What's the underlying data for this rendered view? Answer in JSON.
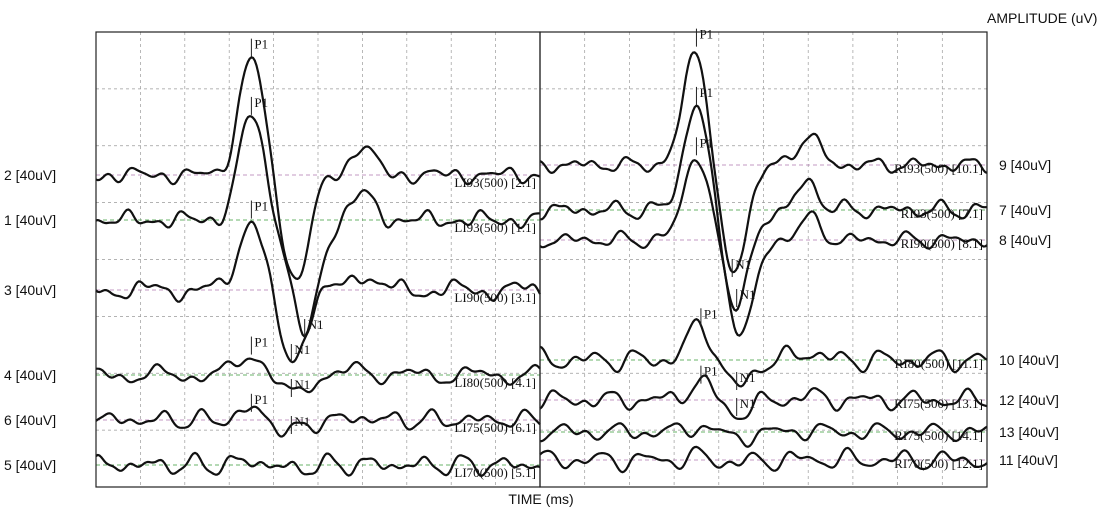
{
  "chart_data": {
    "type": "line",
    "title": "",
    "xlabel": "TIME (ms)",
    "ylabel": "AMPLITUDE (uV)",
    "grid": true,
    "panels": [
      {
        "side": "left",
        "traces": [
          {
            "channel": "2 [40uV]",
            "name": "LI93(500) [2.1]",
            "baseline": 175,
            "p1": {
              "t": 0.35,
              "a": 118,
              "label": "P1"
            },
            "n1": {
              "t": 0.45,
              "a": -105,
              "label": ""
            },
            "seed": 2
          },
          {
            "channel": "1 [40uV]",
            "name": "LI93(500) [1.1]",
            "baseline": 220,
            "p1": {
              "t": 0.35,
              "a": 105,
              "label": "P1"
            },
            "n1": {
              "t": 0.47,
              "a": -115,
              "label": "N1"
            },
            "seed": 1
          },
          {
            "channel": "3 [40uV]",
            "name": "LI90(500) [3.1]",
            "baseline": 290,
            "p1": {
              "t": 0.35,
              "a": 72,
              "label": "P1"
            },
            "n1": {
              "t": 0.44,
              "a": -70,
              "label": "N1"
            },
            "seed": 3
          },
          {
            "channel": "4 [40uV]",
            "name": "LI80(500) [4.1]",
            "baseline": 375,
            "p1": {
              "t": 0.35,
              "a": 22,
              "label": "P1"
            },
            "n1": {
              "t": 0.44,
              "a": -20,
              "label": "N1"
            },
            "seed": 4
          },
          {
            "channel": "6 [40uV]",
            "name": "LI75(500) [6.1]",
            "baseline": 420,
            "p1": {
              "t": 0.35,
              "a": 10,
              "label": "P1"
            },
            "n1": {
              "t": 0.44,
              "a": -12,
              "label": "N1"
            },
            "seed": 6
          },
          {
            "channel": "5 [40uV]",
            "name": "LI70(500) [5.1]",
            "baseline": 465,
            "p1": {
              "t": 0.35,
              "a": 4,
              "label": ""
            },
            "n1": {
              "t": 0.44,
              "a": -4,
              "label": ""
            },
            "seed": 5
          }
        ]
      },
      {
        "side": "right",
        "traces": [
          {
            "channel": "9 [40uV]",
            "name": "RI93(500) [10.1]",
            "baseline": 165,
            "p1": {
              "t": 0.35,
              "a": 118,
              "label": "P1"
            },
            "n1": {
              "t": 0.43,
              "a": -110,
              "label": "N1"
            },
            "seed": 9
          },
          {
            "channel": "7 [40uV]",
            "name": "RI93(500) [7.1]",
            "baseline": 210,
            "p1": {
              "t": 0.35,
              "a": 105,
              "label": "P1"
            },
            "n1": {
              "t": 0.44,
              "a": -95,
              "label": "N1"
            },
            "seed": 7
          },
          {
            "channel": "8 [40uV]",
            "name": "RI90(500) [8.1]",
            "baseline": 240,
            "p1": {
              "t": 0.35,
              "a": 85,
              "label": "P1"
            },
            "n1": {
              "t": 0.45,
              "a": -90,
              "label": ""
            },
            "seed": 8
          },
          {
            "channel": "10 [40uV]",
            "name": "RI80(500) [11.1]",
            "baseline": 360,
            "p1": {
              "t": 0.36,
              "a": 35,
              "label": "P1"
            },
            "n1": {
              "t": 0.44,
              "a": -28,
              "label": "N1"
            },
            "seed": 10
          },
          {
            "channel": "12 [40uV]",
            "name": "RI75(500) [13.1]",
            "baseline": 400,
            "p1": {
              "t": 0.36,
              "a": 18,
              "label": "P1"
            },
            "n1": {
              "t": 0.44,
              "a": -14,
              "label": "N1"
            },
            "seed": 12
          },
          {
            "channel": "13 [40uV]",
            "name": "RI75(500) [14.1]",
            "baseline": 432,
            "p1": {
              "t": 0.36,
              "a": 6,
              "label": ""
            },
            "n1": {
              "t": 0.44,
              "a": -6,
              "label": ""
            },
            "seed": 13
          },
          {
            "channel": "11 [40uV]",
            "name": "RI70(500) [12.1]",
            "baseline": 460,
            "p1": {
              "t": 0.36,
              "a": 3,
              "label": ""
            },
            "n1": {
              "t": 0.44,
              "a": -3,
              "label": ""
            },
            "seed": 11
          }
        ]
      }
    ]
  },
  "colors": {
    "trace": "#111111",
    "grid": "#9a9a9a",
    "frame": "#222222",
    "baseline_magenta": "#b07ab0",
    "baseline_green": "#3a9a3a"
  }
}
